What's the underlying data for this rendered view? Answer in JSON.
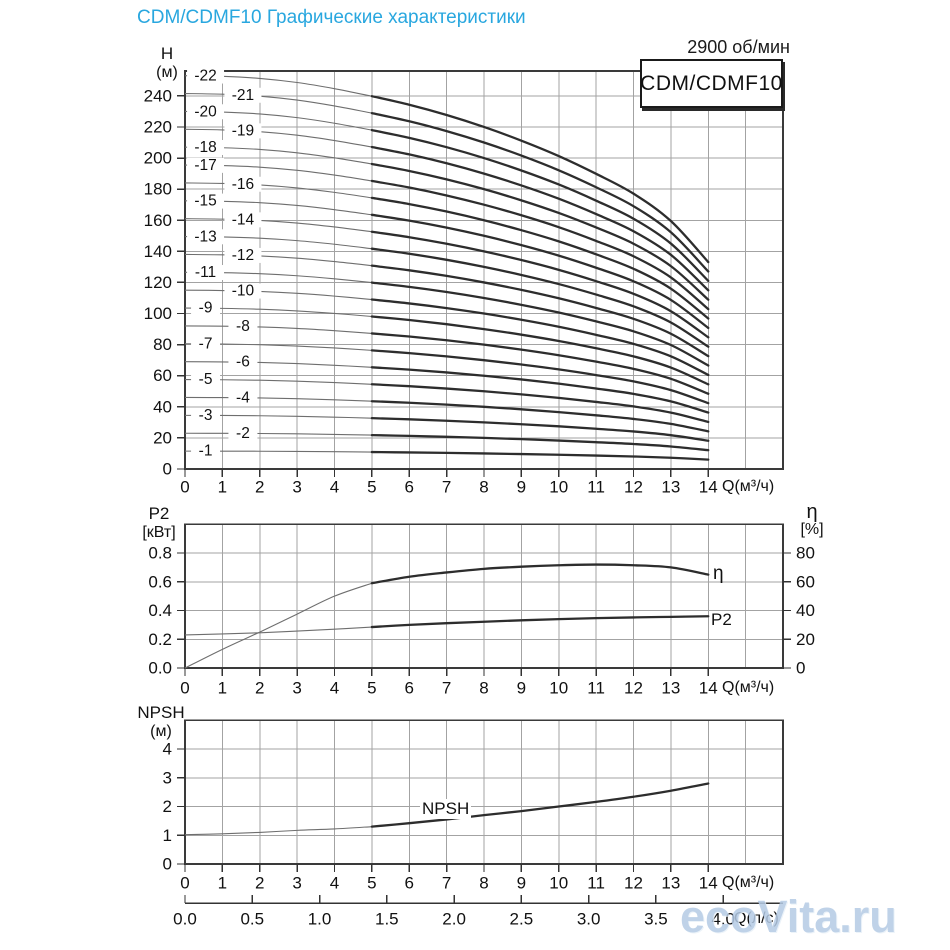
{
  "page": {
    "title": "CDM/CDMF10 Графические характеристики",
    "rpm": "2900 об/мин",
    "model": "CDM/CDMF10",
    "watermark": "ecoVita.ru"
  },
  "chart_data": [
    {
      "id": "head_flow",
      "type": "line",
      "title": "CDM/CDMF10",
      "x": {
        "label": "Q(м³/ч)",
        "min": 0,
        "max": 16,
        "ticks": [
          0,
          1,
          2,
          3,
          4,
          5,
          6,
          7,
          8,
          9,
          10,
          11,
          12,
          13,
          14
        ]
      },
      "y": {
        "label": "H",
        "unit": "(м)",
        "min": 0,
        "max": 256,
        "ticks": [
          0,
          20,
          40,
          60,
          80,
          100,
          120,
          140,
          160,
          180,
          200,
          220,
          240
        ]
      },
      "q": [
        0,
        1,
        2,
        3,
        4,
        5,
        6,
        7,
        8,
        9,
        10,
        11,
        12,
        13,
        14
      ],
      "head_per_stage": [
        11.5,
        11.48,
        11.42,
        11.3,
        11.12,
        10.9,
        10.65,
        10.35,
        10.0,
        9.6,
        9.15,
        8.63,
        8.05,
        7.25,
        6.05
      ],
      "stages": [
        1,
        2,
        3,
        4,
        5,
        6,
        7,
        8,
        9,
        10,
        11,
        12,
        13,
        14,
        15,
        16,
        17,
        18,
        19,
        20,
        21,
        22
      ],
      "curve_labels": {
        "left_q": 0.55,
        "right_q": 1.55,
        "left_stages": [
          1,
          3,
          5,
          7,
          9,
          11,
          13,
          15,
          17,
          18,
          20,
          22
        ],
        "right_stages": [
          2,
          4,
          6,
          8,
          10,
          12,
          14,
          16,
          19,
          21
        ],
        "prefix": "-"
      },
      "duty_split_q": 5
    },
    {
      "id": "power_efficiency",
      "type": "line",
      "x": {
        "label": "Q(м³/ч)",
        "min": 0,
        "max": 16,
        "ticks": [
          0,
          1,
          2,
          3,
          4,
          5,
          6,
          7,
          8,
          9,
          10,
          11,
          12,
          13,
          14
        ]
      },
      "y_left": {
        "label": "P2",
        "unit": "[кВт]",
        "min": 0,
        "max": 1.0,
        "ticks": [
          "0.0",
          "0.2",
          "0.4",
          "0.6",
          "0.8"
        ]
      },
      "y_right": {
        "label": "η",
        "unit": "[%]",
        "min": 0,
        "max": 100,
        "ticks": [
          0,
          20,
          40,
          60,
          80
        ]
      },
      "q": [
        0,
        1,
        2,
        3,
        4,
        5,
        6,
        7,
        8,
        9,
        10,
        11,
        12,
        13,
        14
      ],
      "series": [
        {
          "name": "η",
          "axis": "right",
          "values": [
            0,
            13,
            25,
            37.5,
            50,
            59,
            63.5,
            66.5,
            69,
            70.5,
            71.5,
            72,
            71.5,
            70,
            65
          ]
        },
        {
          "name": "P2",
          "axis": "left",
          "values": [
            0.23,
            0.237,
            0.245,
            0.257,
            0.27,
            0.285,
            0.3,
            0.312,
            0.322,
            0.332,
            0.34,
            0.347,
            0.352,
            0.356,
            0.36
          ]
        }
      ],
      "duty_split_q": 5
    },
    {
      "id": "npsh",
      "type": "line",
      "x": {
        "label": "Q(м³/ч)",
        "min": 0,
        "max": 16,
        "ticks": [
          0,
          1,
          2,
          3,
          4,
          5,
          6,
          7,
          8,
          9,
          10,
          11,
          12,
          13,
          14
        ]
      },
      "y": {
        "label": "NPSH",
        "unit": "(м)",
        "min": 0,
        "max": 5,
        "ticks": [
          0,
          1,
          2,
          3,
          4
        ]
      },
      "q": [
        0,
        1,
        2,
        3,
        4,
        5,
        6,
        7,
        8,
        9,
        10,
        11,
        12,
        13,
        14
      ],
      "series": [
        {
          "name": "NPSH",
          "values": [
            1.02,
            1.05,
            1.1,
            1.17,
            1.22,
            1.3,
            1.42,
            1.55,
            1.7,
            1.84,
            2.0,
            2.16,
            2.34,
            2.55,
            2.8
          ]
        }
      ],
      "duty_split_q": 5
    }
  ],
  "lps_axis": {
    "label": "Q(л/с)",
    "ticks": [
      "0.0",
      "0.5",
      "1.0",
      "1.5",
      "2.0",
      "2.5",
      "3.0",
      "3.5",
      "4.0"
    ],
    "m3h_per_unit": 3.6
  }
}
